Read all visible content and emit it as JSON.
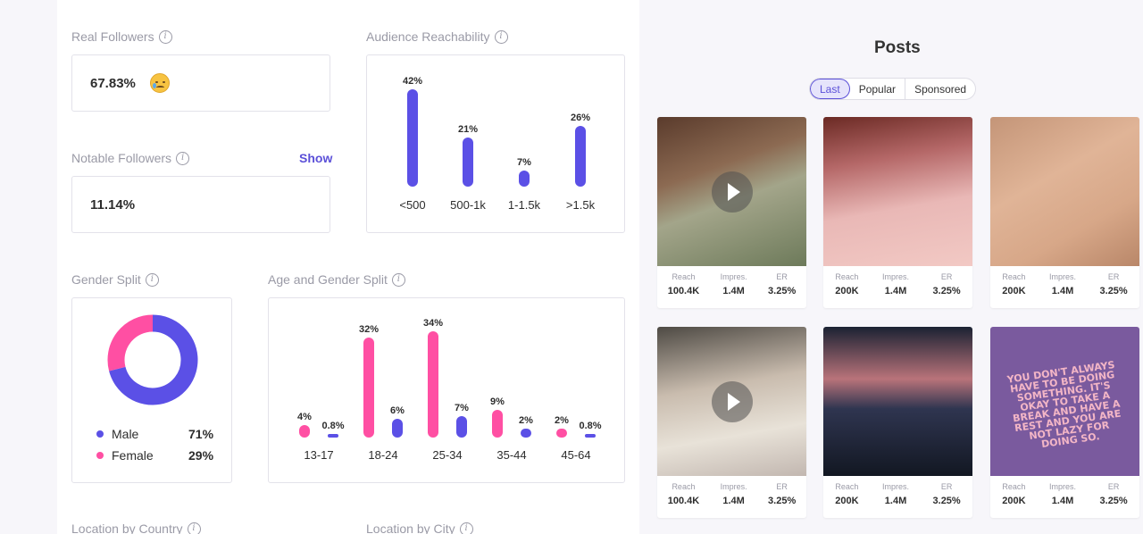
{
  "real_followers": {
    "label": "Real Followers",
    "value": "67.83%"
  },
  "notable_followers": {
    "label": "Notable Followers",
    "value": "11.14%",
    "show_label": "Show"
  },
  "audience_reachability": {
    "label": "Audience Reachability",
    "chart_data": {
      "type": "bar",
      "categories": [
        "<500",
        "500-1k",
        "1-1.5k",
        ">1.5k"
      ],
      "values": [
        42,
        21,
        7,
        26
      ],
      "value_labels": [
        "42%",
        "21%",
        "7%",
        "26%"
      ],
      "color": "#5b50e6"
    }
  },
  "gender_split": {
    "label": "Gender Split",
    "chart_data": {
      "type": "pie",
      "categories": [
        "Male",
        "Female"
      ],
      "values": [
        71,
        29
      ],
      "value_labels": [
        "71%",
        "29%"
      ],
      "colors": [
        "#5b50e6",
        "#ff4fa3"
      ]
    }
  },
  "age_gender_split": {
    "label": "Age and Gender Split",
    "chart_data": {
      "type": "bar",
      "categories": [
        "13-17",
        "18-24",
        "25-34",
        "35-44",
        "45-64"
      ],
      "series": [
        {
          "values": [
            4,
            32,
            34,
            9,
            2
          ],
          "value_labels": [
            "4%",
            "32%",
            "34%",
            "9%",
            "2%"
          ],
          "color": "#ff4fa3"
        },
        {
          "values": [
            0.8,
            6,
            7,
            2,
            0.8
          ],
          "value_labels": [
            "0.8%",
            "6%",
            "7%",
            "2%",
            "0.8%"
          ],
          "color": "#5b50e6"
        }
      ]
    }
  },
  "location_country": {
    "label": "Location by Country"
  },
  "location_city": {
    "label": "Location by City"
  },
  "posts": {
    "title": "Posts",
    "tabs": [
      "Last",
      "Popular",
      "Sponsored"
    ],
    "active_tab": "Last",
    "stat_labels": [
      "Reach",
      "Impres.",
      "ER"
    ],
    "items": [
      {
        "reach": "100.4K",
        "impressions": "1.4M",
        "er": "3.25%",
        "video": true
      },
      {
        "reach": "200K",
        "impressions": "1.4M",
        "er": "3.25%",
        "video": false
      },
      {
        "reach": "200K",
        "impressions": "1.4M",
        "er": "3.25%",
        "video": false
      },
      {
        "reach": "100.4K",
        "impressions": "1.4M",
        "er": "3.25%",
        "video": true
      },
      {
        "reach": "200K",
        "impressions": "1.4M",
        "er": "3.25%",
        "video": false
      },
      {
        "reach": "200K",
        "impressions": "1.4M",
        "er": "3.25%",
        "video": false,
        "image_text": "You don't always have to be doing something. It's okay to take a break and have a rest and you are not lazy for doing so."
      }
    ]
  }
}
